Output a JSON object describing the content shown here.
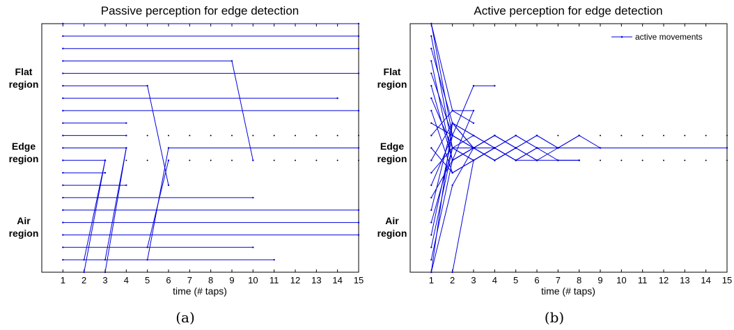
{
  "chart_data": [
    {
      "id": "a",
      "type": "line",
      "title": "Passive perception for edge detection",
      "xlabel": "time (# taps)",
      "xticks": [
        "1",
        "2",
        "3",
        "4",
        "5",
        "6",
        "7",
        "8",
        "9",
        "10",
        "11",
        "12",
        "13",
        "14",
        "15"
      ],
      "xlim": [
        0,
        15
      ],
      "ylim": [
        0,
        20
      ],
      "regions": [
        {
          "line1": "Flat",
          "line2": "region"
        },
        {
          "line1": "Edge",
          "line2": "region"
        },
        {
          "line1": "Air",
          "line2": "region"
        }
      ],
      "subcaption": "(a)",
      "legend": null,
      "trajectories": [
        {
          "points": [
            [
              1,
              20
            ],
            [
              15,
              20
            ]
          ]
        },
        {
          "points": [
            [
              1,
              19
            ],
            [
              15,
              19
            ]
          ]
        },
        {
          "points": [
            [
              1,
              18
            ],
            [
              15,
              18
            ]
          ]
        },
        {
          "points": [
            [
              1,
              17
            ],
            [
              9,
              17
            ],
            [
              10,
              9
            ]
          ]
        },
        {
          "points": [
            [
              1,
              16
            ],
            [
              15,
              16
            ]
          ]
        },
        {
          "points": [
            [
              1,
              15
            ],
            [
              5,
              15
            ],
            [
              6,
              7
            ]
          ]
        },
        {
          "points": [
            [
              1,
              14
            ],
            [
              14,
              14
            ]
          ]
        },
        {
          "points": [
            [
              1,
              13
            ],
            [
              15,
              13
            ]
          ]
        },
        {
          "points": [
            [
              1,
              12
            ],
            [
              4,
              12
            ]
          ]
        },
        {
          "points": [
            [
              1,
              11
            ],
            [
              4,
              11
            ]
          ]
        },
        {
          "points": [
            [
              1,
              10
            ],
            [
              4,
              10
            ],
            [
              3,
              1
            ]
          ]
        },
        {
          "points": [
            [
              1,
              9
            ],
            [
              3,
              9
            ],
            [
              2,
              1
            ]
          ]
        },
        {
          "points": [
            [
              1,
              8
            ],
            [
              3,
              8
            ]
          ]
        },
        {
          "points": [
            [
              1,
              7
            ],
            [
              4,
              7
            ]
          ]
        },
        {
          "points": [
            [
              1,
              6
            ],
            [
              10,
              6
            ]
          ]
        },
        {
          "points": [
            [
              1,
              5
            ],
            [
              15,
              5
            ]
          ]
        },
        {
          "points": [
            [
              1,
              4
            ],
            [
              15,
              4
            ]
          ]
        },
        {
          "points": [
            [
              1,
              3
            ],
            [
              15,
              3
            ]
          ]
        },
        {
          "points": [
            [
              1,
              2
            ],
            [
              10,
              2
            ]
          ]
        },
        {
          "points": [
            [
              1,
              1
            ],
            [
              11,
              1
            ]
          ]
        },
        {
          "points": [
            [
              2,
              0
            ],
            [
              3,
              9
            ]
          ]
        },
        {
          "points": [
            [
              3,
              0
            ],
            [
              4,
              10
            ]
          ]
        },
        {
          "points": [
            [
              5,
              1
            ],
            [
              6,
              10
            ],
            [
              15,
              10
            ]
          ]
        },
        {
          "points": [
            [
              5,
              2
            ],
            [
              6,
              9
            ]
          ]
        }
      ],
      "dot_rows": [
        {
          "y": 11,
          "x_from": 5,
          "x_to": 15
        },
        {
          "y": 9,
          "x_from": 4,
          "x_to": 15
        }
      ]
    },
    {
      "id": "b",
      "type": "line",
      "title": "Active perception for edge detection",
      "xlabel": "time (# taps)",
      "xticks": [
        "1",
        "2",
        "3",
        "4",
        "5",
        "6",
        "7",
        "8",
        "9",
        "10",
        "11",
        "12",
        "13",
        "14",
        "15"
      ],
      "xlim": [
        0,
        15
      ],
      "ylim": [
        0,
        20
      ],
      "regions": [
        {
          "line1": "Flat",
          "line2": "region"
        },
        {
          "line1": "Edge",
          "line2": "region"
        },
        {
          "line1": "Air",
          "line2": "region"
        }
      ],
      "subcaption": "(b)",
      "legend": {
        "label": "active movements",
        "position": "top-right"
      },
      "trajectories": [
        {
          "points": [
            [
              1,
              20
            ],
            [
              2,
              11
            ],
            [
              3,
              10
            ],
            [
              4,
              11
            ],
            [
              5,
              10
            ],
            [
              6,
              11
            ],
            [
              7,
              10
            ],
            [
              8,
              11
            ],
            [
              9,
              10
            ],
            [
              15,
              10
            ]
          ]
        },
        {
          "points": [
            [
              1,
              19
            ],
            [
              2,
              10
            ],
            [
              3,
              9
            ],
            [
              4,
              10
            ],
            [
              5,
              9
            ],
            [
              6,
              10
            ],
            [
              15,
              10
            ]
          ]
        },
        {
          "points": [
            [
              1,
              18
            ],
            [
              2,
              12
            ],
            [
              3,
              11
            ],
            [
              4,
              10
            ],
            [
              5,
              11
            ],
            [
              6,
              10
            ]
          ]
        },
        {
          "points": [
            [
              1,
              17
            ],
            [
              2,
              9
            ],
            [
              3,
              10
            ],
            [
              4,
              9
            ],
            [
              5,
              10
            ],
            [
              6,
              9
            ],
            [
              7,
              10
            ]
          ]
        },
        {
          "points": [
            [
              1,
              16
            ],
            [
              2,
              11
            ],
            [
              3,
              15
            ],
            [
              4,
              15
            ]
          ]
        },
        {
          "points": [
            [
              1,
              15
            ],
            [
              2,
              9
            ],
            [
              3,
              10
            ],
            [
              4,
              11
            ],
            [
              5,
              10
            ]
          ]
        },
        {
          "points": [
            [
              1,
              14
            ],
            [
              2,
              10
            ],
            [
              3,
              11
            ],
            [
              4,
              10
            ],
            [
              5,
              9
            ],
            [
              6,
              10
            ]
          ]
        },
        {
          "points": [
            [
              1,
              13
            ],
            [
              2,
              8
            ],
            [
              3,
              9
            ],
            [
              4,
              10
            ],
            [
              5,
              9
            ],
            [
              6,
              10
            ],
            [
              7,
              9
            ],
            [
              8,
              9
            ]
          ]
        },
        {
          "points": [
            [
              1,
              12
            ],
            [
              2,
              11
            ],
            [
              3,
              10
            ],
            [
              4,
              9
            ],
            [
              5,
              10
            ],
            [
              6,
              11
            ],
            [
              7,
              10
            ],
            [
              8,
              11
            ]
          ]
        },
        {
          "points": [
            [
              1,
              11
            ],
            [
              2,
              13
            ],
            [
              3,
              13
            ],
            [
              2,
              9
            ],
            [
              3,
              10
            ]
          ]
        },
        {
          "points": [
            [
              1,
              10
            ],
            [
              2,
              8
            ],
            [
              3,
              9
            ],
            [
              4,
              10
            ],
            [
              5,
              11
            ],
            [
              6,
              10
            ]
          ]
        },
        {
          "points": [
            [
              1,
              9
            ],
            [
              2,
              12
            ],
            [
              3,
              10
            ],
            [
              4,
              9
            ],
            [
              5,
              10
            ]
          ]
        },
        {
          "points": [
            [
              1,
              8
            ],
            [
              2,
              10
            ],
            [
              3,
              9
            ],
            [
              4,
              10
            ],
            [
              5,
              9
            ],
            [
              6,
              9
            ],
            [
              7,
              9
            ],
            [
              8,
              9
            ]
          ]
        },
        {
          "points": [
            [
              1,
              7
            ],
            [
              2,
              11
            ],
            [
              3,
              10
            ],
            [
              4,
              11
            ],
            [
              5,
              10
            ]
          ]
        },
        {
          "points": [
            [
              1,
              6
            ],
            [
              2,
              9
            ],
            [
              3,
              10
            ],
            [
              4,
              9
            ],
            [
              5,
              10
            ],
            [
              6,
              9
            ]
          ]
        },
        {
          "points": [
            [
              1,
              5
            ],
            [
              2,
              12
            ],
            [
              3,
              10
            ],
            [
              4,
              11
            ],
            [
              5,
              10
            ]
          ]
        },
        {
          "points": [
            [
              1,
              4
            ],
            [
              2,
              10
            ],
            [
              3,
              9
            ],
            [
              4,
              10
            ]
          ]
        },
        {
          "points": [
            [
              1,
              3
            ],
            [
              2,
              11
            ],
            [
              3,
              10
            ],
            [
              4,
              9
            ],
            [
              5,
              10
            ]
          ]
        },
        {
          "points": [
            [
              1,
              2
            ],
            [
              2,
              10
            ],
            [
              3,
              10
            ],
            [
              4,
              10
            ]
          ]
        },
        {
          "points": [
            [
              1,
              1
            ],
            [
              2,
              9
            ],
            [
              3,
              10
            ]
          ]
        },
        {
          "points": [
            [
              1,
              0
            ],
            [
              2,
              12
            ],
            [
              3,
              11
            ],
            [
              4,
              10
            ]
          ]
        },
        {
          "points": [
            [
              2,
              0
            ],
            [
              3,
              9
            ],
            [
              4,
              10
            ]
          ]
        },
        {
          "points": [
            [
              1,
              20
            ],
            [
              2,
              13
            ],
            [
              3,
              12
            ]
          ]
        },
        {
          "points": [
            [
              1,
              0
            ],
            [
              2,
              7
            ],
            [
              3,
              10
            ]
          ]
        }
      ],
      "dot_rows": [
        {
          "y": 11,
          "x_from": 5,
          "x_to": 15
        },
        {
          "y": 9,
          "x_from": 9,
          "x_to": 15
        }
      ]
    }
  ]
}
